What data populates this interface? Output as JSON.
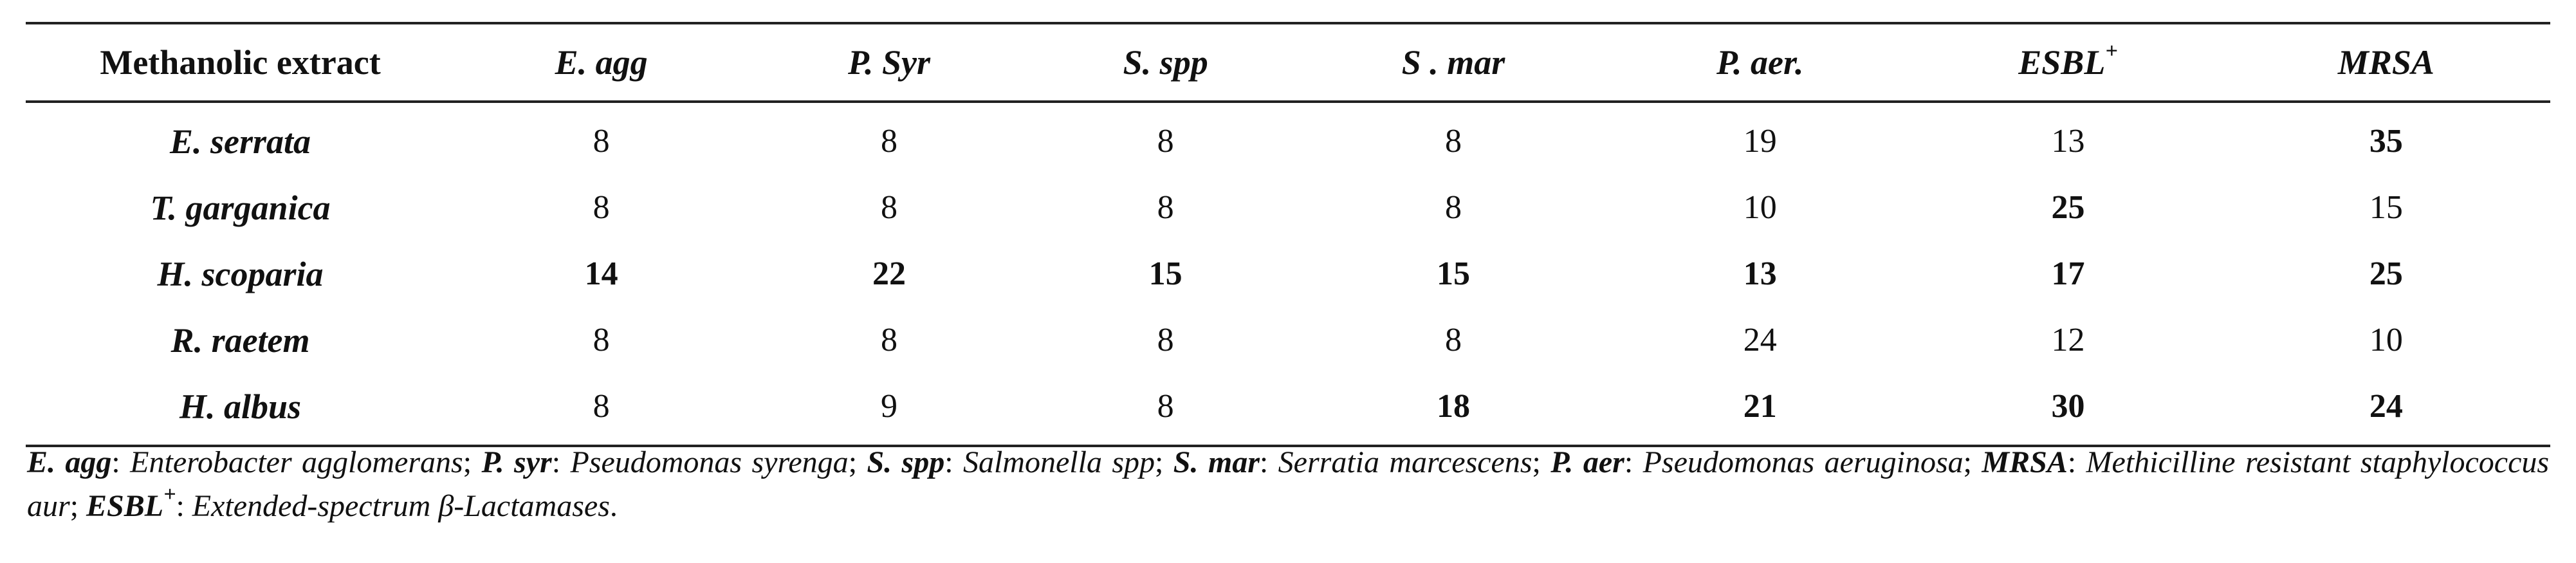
{
  "table": {
    "headers": [
      "Methanolic extract",
      "E. agg",
      "P. Syr",
      "S. spp",
      "S . mar",
      "P. aer.",
      "ESBL",
      "MRSA"
    ],
    "esbl_superscript": "+",
    "rows": [
      {
        "species": "E. serrata",
        "values": [
          "8",
          "8",
          "8",
          "8",
          "19",
          "13",
          "35"
        ],
        "bold": [
          false,
          false,
          false,
          false,
          false,
          false,
          true
        ]
      },
      {
        "species": "T. garganica",
        "values": [
          "8",
          "8",
          "8",
          "8",
          "10",
          "25",
          "15"
        ],
        "bold": [
          false,
          false,
          false,
          false,
          false,
          true,
          false
        ]
      },
      {
        "species": "H. scoparia",
        "values": [
          "14",
          "22",
          "15",
          "15",
          "13",
          "17",
          "25"
        ],
        "bold": [
          true,
          true,
          true,
          true,
          true,
          true,
          true
        ]
      },
      {
        "species": "R. raetem",
        "values": [
          "8",
          "8",
          "8",
          "8",
          "24",
          "12",
          "10"
        ],
        "bold": [
          false,
          false,
          false,
          false,
          false,
          false,
          false
        ]
      },
      {
        "species": "H. albus",
        "values": [
          "8",
          "9",
          "8",
          "18",
          "21",
          "30",
          "24"
        ],
        "bold": [
          false,
          false,
          false,
          true,
          true,
          true,
          true
        ]
      }
    ]
  },
  "footnote": [
    {
      "abbr": "E. agg",
      "def": "Enterobacter agglomerans",
      "sep": "; "
    },
    {
      "abbr": "P. syr",
      "def": "Pseudomonas syrenga",
      "sep": "; "
    },
    {
      "abbr": "S. spp",
      "def": "Salmonella spp",
      "sep": "; "
    },
    {
      "abbr": "S. mar",
      "def": "Serratia marcescens",
      "sep": "; "
    },
    {
      "abbr": "P. aer",
      "def": "Pseudomonas aeruginosa",
      "sep": "; "
    },
    {
      "abbr": "MRSA",
      "def": "Methicilline resistant staphylococcus aur",
      "sep": "; "
    },
    {
      "abbr": "ESBL",
      "abbr_sup": "+",
      "def": "Extended-spectrum β-Lactamases",
      "sep": "."
    }
  ]
}
